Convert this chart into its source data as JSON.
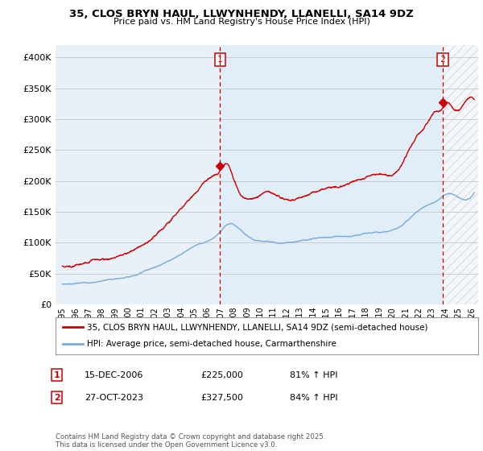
{
  "title": "35, CLOS BRYN HAUL, LLWYNHENDY, LLANELLI, SA14 9DZ",
  "subtitle": "Price paid vs. HM Land Registry's House Price Index (HPI)",
  "red_label": "35, CLOS BRYN HAUL, LLWYNHENDY, LLANELLI, SA14 9DZ (semi-detached house)",
  "blue_label": "HPI: Average price, semi-detached house, Carmarthenshire",
  "point1_date": "15-DEC-2006",
  "point1_price": 225000,
  "point1_pct": "81% ↑ HPI",
  "point2_date": "27-OCT-2023",
  "point2_price": 327500,
  "point2_pct": "84% ↑ HPI",
  "footnote": "Contains HM Land Registry data © Crown copyright and database right 2025.\nThis data is licensed under the Open Government Licence v3.0.",
  "ylim": [
    0,
    420000
  ],
  "xlim_start": 1994.5,
  "xlim_end": 2026.5,
  "red_color": "#cc0000",
  "blue_color": "#7aaadd",
  "point1_x": 2006.96,
  "point2_x": 2023.82,
  "bg_color": "#ffffff",
  "grid_color": "#cccccc",
  "shade_color": "#ddeeff"
}
